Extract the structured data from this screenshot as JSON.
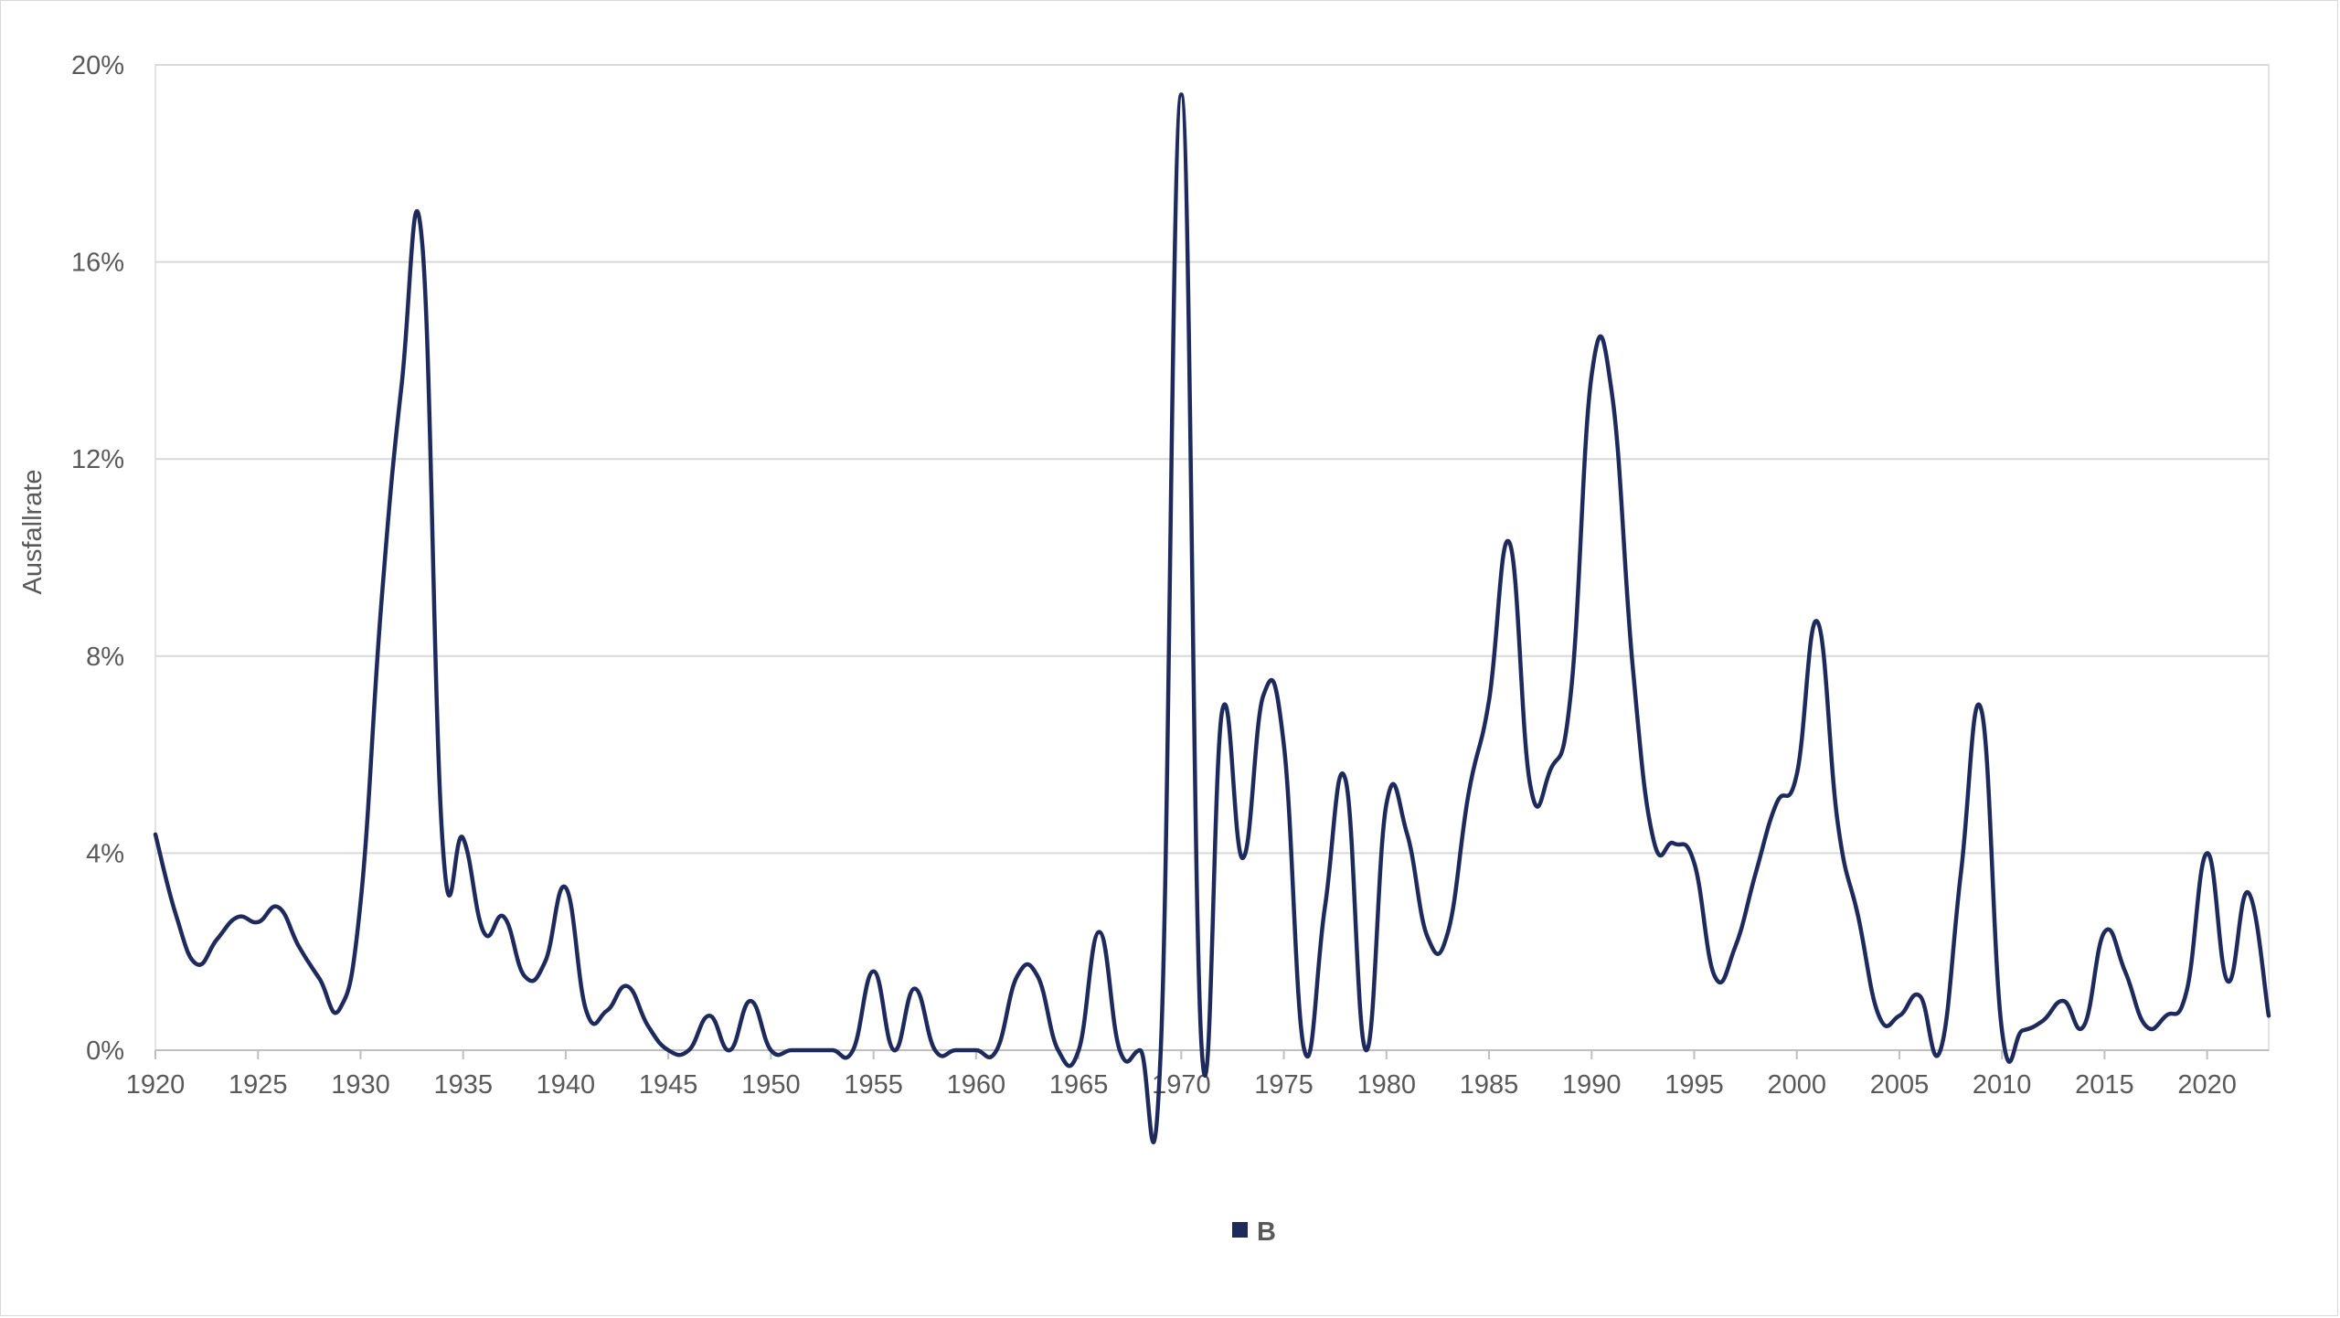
{
  "chart_data": {
    "type": "line",
    "title": "",
    "xlabel": "",
    "ylabel": "Ausfallrate",
    "x_range": [
      1920,
      2023
    ],
    "ylim": [
      0,
      0.2
    ],
    "y_ticks": [
      0,
      0.04,
      0.08,
      0.12,
      0.16,
      0.2
    ],
    "y_tick_labels": [
      "0%",
      "4%",
      "8%",
      "12%",
      "16%",
      "20%"
    ],
    "x_ticks": [
      1920,
      1925,
      1930,
      1935,
      1940,
      1945,
      1950,
      1955,
      1960,
      1965,
      1970,
      1975,
      1980,
      1985,
      1990,
      1995,
      2000,
      2005,
      2010,
      2015,
      2020
    ],
    "x_tick_labels": [
      "1920",
      "1925",
      "1930",
      "1935",
      "1940",
      "1945",
      "1950",
      "1955",
      "1960",
      "1965",
      "1970",
      "1975",
      "1980",
      "1985",
      "1990",
      "1995",
      "2000",
      "2005",
      "2010",
      "2015",
      "2020"
    ],
    "grid": "horizontal",
    "legend_position": "bottom",
    "series": [
      {
        "name": "B",
        "color": "#1f2a5c",
        "x": [
          1920,
          1921,
          1922,
          1923,
          1924,
          1925,
          1926,
          1927,
          1928,
          1929,
          1930,
          1931,
          1932,
          1933,
          1934,
          1935,
          1936,
          1937,
          1938,
          1939,
          1940,
          1941,
          1942,
          1943,
          1944,
          1945,
          1946,
          1947,
          1948,
          1949,
          1950,
          1951,
          1952,
          1953,
          1954,
          1955,
          1956,
          1957,
          1958,
          1959,
          1960,
          1961,
          1962,
          1963,
          1964,
          1965,
          1966,
          1967,
          1968,
          1969,
          1970,
          1971,
          1972,
          1973,
          1974,
          1975,
          1976,
          1977,
          1978,
          1979,
          1980,
          1981,
          1982,
          1983,
          1984,
          1985,
          1986,
          1987,
          1988,
          1989,
          1990,
          1991,
          1992,
          1993,
          1994,
          1995,
          1996,
          1997,
          1998,
          1999,
          2000,
          2001,
          2002,
          2003,
          2004,
          2005,
          2006,
          2007,
          2008,
          2009,
          2010,
          2011,
          2012,
          2013,
          2014,
          2015,
          2016,
          2017,
          2018,
          2019,
          2020,
          2021,
          2022,
          2023
        ],
        "y": [
          0.0438,
          0.0275,
          0.0175,
          0.0225,
          0.027,
          0.026,
          0.029,
          0.021,
          0.0145,
          0.0085,
          0.03,
          0.09,
          0.135,
          0.164,
          0.042,
          0.043,
          0.024,
          0.027,
          0.015,
          0.018,
          0.033,
          0.008,
          0.008,
          0.013,
          0.005,
          0.0,
          0.0,
          0.007,
          0.0,
          0.01,
          0.0,
          0.0,
          0.0,
          0.0,
          0.0,
          0.016,
          0.0,
          0.0125,
          0.0,
          0.0,
          0.0,
          0.0,
          0.015,
          0.015,
          0.0,
          0.0,
          0.024,
          0.0,
          0.0,
          0.0,
          0.194,
          0.0,
          0.069,
          0.039,
          0.072,
          0.062,
          0.0,
          0.029,
          0.055,
          0.0,
          0.05,
          0.044,
          0.023,
          0.024,
          0.052,
          0.071,
          0.103,
          0.054,
          0.057,
          0.073,
          0.137,
          0.133,
          0.078,
          0.043,
          0.042,
          0.038,
          0.015,
          0.021,
          0.036,
          0.05,
          0.056,
          0.087,
          0.046,
          0.027,
          0.007,
          0.007,
          0.011,
          0.0,
          0.036,
          0.069,
          0.004,
          0.004,
          0.006,
          0.01,
          0.005,
          0.024,
          0.016,
          0.005,
          0.007,
          0.012,
          0.04,
          0.014,
          0.032,
          0.007
        ]
      }
    ]
  }
}
